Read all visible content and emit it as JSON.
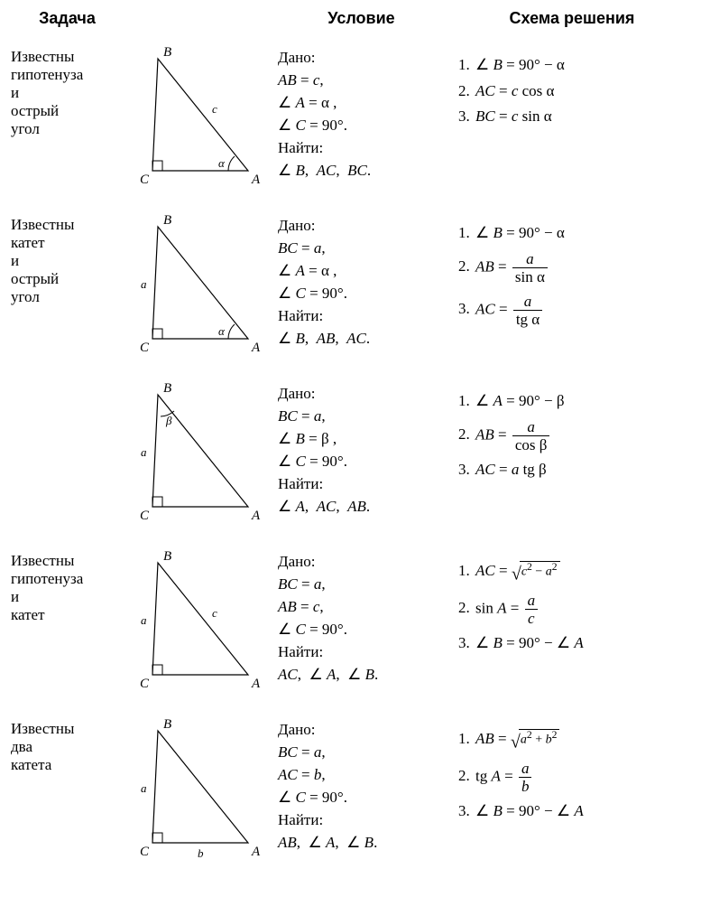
{
  "headers": {
    "task": "Задача",
    "condition": "Условие",
    "solution": "Схема решения"
  },
  "labels": {
    "given": "Дано:",
    "find": "Найти:"
  },
  "diagram_style": {
    "stroke": "#000000",
    "stroke_width": 1.2,
    "label_font_size": 15,
    "side_font_size": 13,
    "angle_font_size": 13
  },
  "rows": [
    {
      "task": "Известны гипотенуза и острый угол",
      "diagram": {
        "B": "B",
        "C": "C",
        "A": "A",
        "hyp": "c",
        "leg_v": "",
        "leg_h": "",
        "angle_at_A": "α",
        "angle_at_B": ""
      },
      "given": [
        "<span class='i'>AB</span> = <span class='i'>c</span>,",
        "∠ <span class='i'>A</span> = α ,",
        "∠ <span class='i'>C</span> = 90°."
      ],
      "find": "∠ <span class='i'>B</span>,&nbsp; <span class='i'>AC</span>,&nbsp; <span class='i'>BC</span>.",
      "solution": [
        "∠ <span class='i'>B</span> = 90° − α",
        "<span class='i'>AC</span> = <span class='i'>c</span> cos α",
        "<span class='i'>BC</span> = <span class='i'>c</span> sin α"
      ]
    },
    {
      "task": "Известны катет и острый угол",
      "diagram": {
        "B": "B",
        "C": "C",
        "A": "A",
        "hyp": "",
        "leg_v": "a",
        "leg_h": "",
        "angle_at_A": "α",
        "angle_at_B": ""
      },
      "given": [
        "<span class='i'>BC</span> = <span class='i'>a</span>,",
        "∠ <span class='i'>A</span> = α ,",
        "∠ <span class='i'>C</span> = 90°."
      ],
      "find": "∠ <span class='i'>B</span>,&nbsp; <span class='i'>AB</span>,&nbsp; <span class='i'>AC</span>.",
      "solution": [
        "∠ <span class='i'>B</span> = 90° − α",
        "<span class='i'>AB</span> = <span class='frac'><span class='num'><span class='i'>a</span></span><span class='den'>sin α</span></span>",
        "<span class='i'>AC</span> = <span class='frac'><span class='num'><span class='i'>a</span></span><span class='den'>tg α</span></span>"
      ]
    },
    {
      "task": "",
      "diagram": {
        "B": "B",
        "C": "C",
        "A": "A",
        "hyp": "",
        "leg_v": "a",
        "leg_h": "",
        "angle_at_A": "",
        "angle_at_B": "β"
      },
      "given": [
        "<span class='i'>BC</span> = <span class='i'>a</span>,",
        "∠ <span class='i'>B</span> = β ,",
        "∠ <span class='i'>C</span> = 90°."
      ],
      "find": "∠ <span class='i'>A</span>,&nbsp; <span class='i'>AC</span>,&nbsp; <span class='i'>AB</span>.",
      "solution": [
        "∠ <span class='i'>A</span> = 90° − β",
        "<span class='i'>AB</span> = <span class='frac'><span class='num'><span class='i'>a</span></span><span class='den'>cos β</span></span>",
        "<span class='i'>AC</span> = <span class='i'>a</span> tg β"
      ]
    },
    {
      "task": "Известны гипотенуза и катет",
      "diagram": {
        "B": "B",
        "C": "C",
        "A": "A",
        "hyp": "c",
        "leg_v": "a",
        "leg_h": "",
        "angle_at_A": "",
        "angle_at_B": ""
      },
      "given": [
        "<span class='i'>BC</span> = <span class='i'>a</span>,",
        "<span class='i'>AB</span> = <span class='i'>c</span>,",
        "∠ <span class='i'>C</span> = 90°."
      ],
      "find": "<span class='i'>AC</span>,&nbsp; ∠ <span class='i'>A</span>,&nbsp; ∠ <span class='i'>B</span>.",
      "solution": [
        "<span class='i'>AC</span> = <span class='sqrt'><span class='surd'>√</span><span class='rad'><span class='i'>c</span><sup>2</sup> − <span class='i'>a</span><sup>2</sup></span></span>",
        "sin <span class='i'>A</span> = <span class='frac'><span class='num'><span class='i'>a</span></span><span class='den'><span class='i'>c</span></span></span>",
        "∠ <span class='i'>B</span> = 90° − ∠ <span class='i'>A</span>"
      ]
    },
    {
      "task": "Известны два катета",
      "diagram": {
        "B": "B",
        "C": "C",
        "A": "A",
        "hyp": "",
        "leg_v": "a",
        "leg_h": "b",
        "angle_at_A": "",
        "angle_at_B": ""
      },
      "given": [
        "<span class='i'>BC</span> = <span class='i'>a</span>,",
        "<span class='i'>AC</span> = <span class='i'>b</span>,",
        "∠ <span class='i'>C</span> = 90°."
      ],
      "find": "<span class='i'>AB</span>,&nbsp; ∠ <span class='i'>A</span>,&nbsp; ∠ <span class='i'>B</span>.",
      "solution": [
        "<span class='i'>AB</span> = <span class='sqrt'><span class='surd'>√</span><span class='rad'><span class='i'>a</span><sup>2</sup> + <span class='i'>b</span><sup>2</sup></span></span>",
        "tg <span class='i'>A</span> = <span class='frac'><span class='num'><span class='i'>a</span></span><span class='den'><span class='i'>b</span></span></span>",
        "∠ <span class='i'>B</span> = 90° − ∠ <span class='i'>A</span>"
      ]
    }
  ]
}
